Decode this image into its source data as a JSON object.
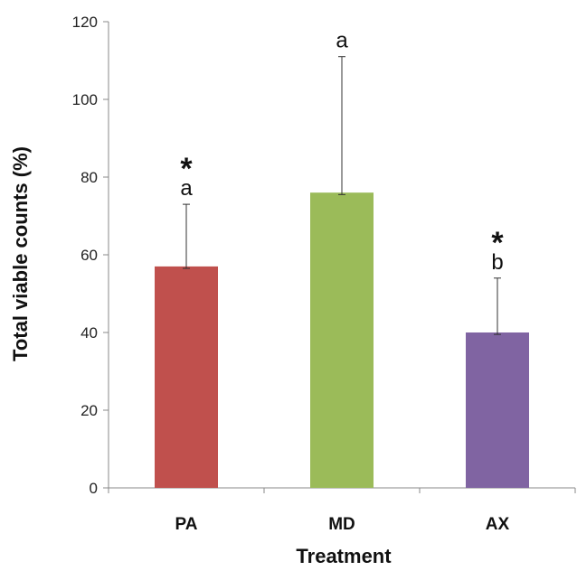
{
  "chart_data": {
    "type": "bar",
    "categories": [
      "PA",
      "MD",
      "AX"
    ],
    "values": [
      57,
      76,
      40
    ],
    "error_upper": [
      73,
      111,
      54
    ],
    "error_lower": [
      56.5,
      75.5,
      39.5
    ],
    "colors": [
      "#C0504D",
      "#9BBB59",
      "#8064A2"
    ],
    "letters": [
      "a",
      "a",
      "b"
    ],
    "stars": [
      "*",
      "",
      "*"
    ],
    "xlabel": "Treatment",
    "ylabel": "Total viable counts  (%)",
    "ylim": [
      0,
      120
    ],
    "yticks": [
      "0",
      "20",
      "40",
      "60",
      "80",
      "100",
      "120"
    ],
    "grid": false,
    "legend": "none"
  }
}
